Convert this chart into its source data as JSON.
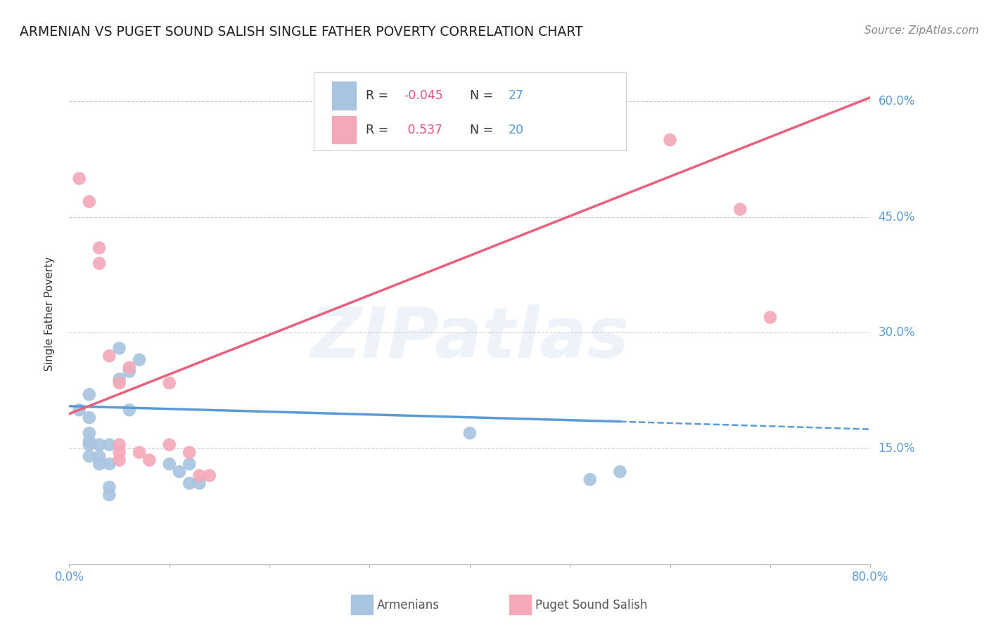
{
  "title": "ARMENIAN VS PUGET SOUND SALISH SINGLE FATHER POVERTY CORRELATION CHART",
  "source": "Source: ZipAtlas.com",
  "ylabel": "Single Father Poverty",
  "ylabel_ticks": [
    "15.0%",
    "30.0%",
    "45.0%",
    "60.0%"
  ],
  "ylabel_tick_values": [
    0.15,
    0.3,
    0.45,
    0.6
  ],
  "xlim": [
    0.0,
    0.8
  ],
  "ylim": [
    0.0,
    0.65
  ],
  "watermark": "ZIPatlas",
  "armenian_R": -0.045,
  "armenian_N": 27,
  "puget_R": 0.537,
  "puget_N": 20,
  "armenian_scatter": [
    [
      0.01,
      0.2
    ],
    [
      0.02,
      0.22
    ],
    [
      0.02,
      0.19
    ],
    [
      0.02,
      0.17
    ],
    [
      0.02,
      0.16
    ],
    [
      0.02,
      0.155
    ],
    [
      0.02,
      0.14
    ],
    [
      0.03,
      0.155
    ],
    [
      0.03,
      0.14
    ],
    [
      0.03,
      0.13
    ],
    [
      0.04,
      0.155
    ],
    [
      0.04,
      0.13
    ],
    [
      0.04,
      0.1
    ],
    [
      0.04,
      0.09
    ],
    [
      0.05,
      0.28
    ],
    [
      0.05,
      0.24
    ],
    [
      0.06,
      0.25
    ],
    [
      0.06,
      0.2
    ],
    [
      0.07,
      0.265
    ],
    [
      0.1,
      0.13
    ],
    [
      0.11,
      0.12
    ],
    [
      0.12,
      0.13
    ],
    [
      0.12,
      0.105
    ],
    [
      0.13,
      0.105
    ],
    [
      0.4,
      0.17
    ],
    [
      0.52,
      0.11
    ],
    [
      0.55,
      0.12
    ]
  ],
  "puget_scatter": [
    [
      0.01,
      0.5
    ],
    [
      0.02,
      0.47
    ],
    [
      0.03,
      0.41
    ],
    [
      0.03,
      0.39
    ],
    [
      0.04,
      0.27
    ],
    [
      0.05,
      0.235
    ],
    [
      0.05,
      0.155
    ],
    [
      0.05,
      0.145
    ],
    [
      0.05,
      0.135
    ],
    [
      0.06,
      0.255
    ],
    [
      0.07,
      0.145
    ],
    [
      0.08,
      0.135
    ],
    [
      0.1,
      0.155
    ],
    [
      0.1,
      0.235
    ],
    [
      0.12,
      0.145
    ],
    [
      0.13,
      0.115
    ],
    [
      0.14,
      0.115
    ],
    [
      0.6,
      0.55
    ],
    [
      0.67,
      0.46
    ],
    [
      0.7,
      0.32
    ]
  ],
  "armenian_line": [
    [
      0.0,
      0.205
    ],
    [
      0.55,
      0.185
    ]
  ],
  "armenian_line_solid_end": 0.55,
  "armenian_line_dashed": [
    [
      0.55,
      0.185
    ],
    [
      0.8,
      0.175
    ]
  ],
  "puget_line": [
    [
      0.0,
      0.195
    ],
    [
      0.8,
      0.605
    ]
  ],
  "background_color": "#ffffff",
  "armenian_color": "#a8c4e0",
  "puget_color": "#f4a8b8",
  "armenian_line_color": "#5b9bd5",
  "puget_line_color": "#e8617a",
  "grid_color": "#cccccc",
  "tick_color": "#5b9bd5",
  "title_color": "#222222",
  "source_color": "#888888"
}
